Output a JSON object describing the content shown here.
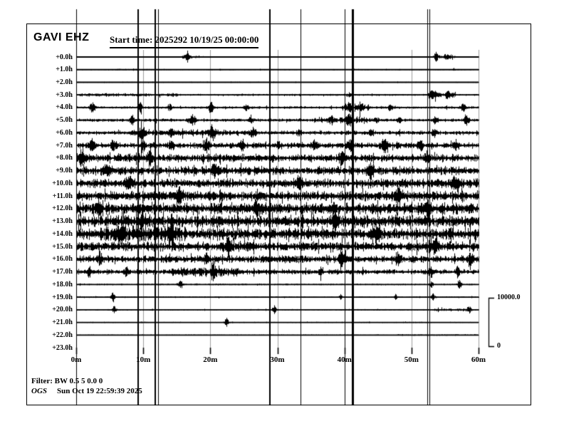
{
  "header": {
    "station": "GAVI EHZ",
    "start_time_label": "Start time: 2025292 10/19/25 00:00:00"
  },
  "footer": {
    "filter": "Filter: BW 0.5 5 0.0 0",
    "agency": "OGS",
    "generated": "Sun Oct 19 22:59:39 2025"
  },
  "scale_bar": {
    "max_label": "10000.0",
    "min_label": "0"
  },
  "colors": {
    "trace": "#000000",
    "grid": "#9e9e9e",
    "event_line": "#000000",
    "background": "#ffffff",
    "border": "#000000"
  },
  "chart_data": {
    "type": "line",
    "subtype": "helicorder-seismogram",
    "title": "GAVI EHZ",
    "x_axis": {
      "unit": "minutes",
      "range_minutes": [
        0,
        60
      ],
      "tick_labels": [
        "0m",
        "10m",
        "20m",
        "30m",
        "40m",
        "50m",
        "60m"
      ],
      "grid": true
    },
    "y_axis": {
      "unit": "hours-offset",
      "row_labels": [
        "+0.0h",
        "+1.0h",
        "+2.0h",
        "+3.0h",
        "+4.0h",
        "+5.0h",
        "+6.0h",
        "+7.0h",
        "+8.0h",
        "+9.0h",
        "+10.0h",
        "+11.0h",
        "+12.0h",
        "+13.0h",
        "+14.0h",
        "+15.0h",
        "+16.0h",
        "+17.0h",
        "+18.0h",
        "+19.0h",
        "+20.0h",
        "+21.0h",
        "+22.0h",
        "+23.0h"
      ]
    },
    "amplitude_scale": {
      "max_counts": 10000,
      "min_counts": 0
    },
    "event_lines_minutes": [
      {
        "min": 0.0,
        "w": 1
      },
      {
        "min": 9.2,
        "w": 2
      },
      {
        "min": 11.8,
        "w": 2
      },
      {
        "min": 12.2,
        "w": 1
      },
      {
        "min": 28.9,
        "w": 2
      },
      {
        "min": 33.4,
        "w": 1
      },
      {
        "min": 40.0,
        "w": 1
      },
      {
        "min": 41.2,
        "w": 3
      },
      {
        "min": 52.4,
        "w": 1
      },
      {
        "min": 52.7,
        "w": 1
      }
    ],
    "rows": [
      {
        "label": "+0.0h",
        "hour": 0,
        "base_amp": 100,
        "bursts": [
          [
            15.4,
            19.4,
            2.2
          ],
          [
            53.6,
            56.6,
            2.8
          ]
        ],
        "spikes": [
          [
            16.5,
            580,
            0.6
          ],
          [
            53.6,
            1000,
            0.3
          ],
          [
            55.3,
            430,
            0.7
          ]
        ]
      },
      {
        "label": "+1.0h",
        "hour": 1,
        "base_amp": 100,
        "bursts": [
          [
            5.6,
            10.9,
            1.5
          ]
        ],
        "spikes": [
          [
            56.3,
            220,
            0.2
          ]
        ]
      },
      {
        "label": "+2.0h",
        "hour": 2,
        "base_amp": 90,
        "bursts": [],
        "spikes": []
      },
      {
        "label": "+3.0h",
        "hour": 3,
        "base_amp": 190,
        "bursts": [
          [
            0.3,
            15.2,
            1.8
          ],
          [
            52.4,
            56.6,
            3.0
          ]
        ],
        "spikes": [
          [
            53.1,
            870,
            0.4
          ],
          [
            55.3,
            720,
            0.3
          ],
          [
            40.7,
            360,
            0.3
          ]
        ]
      },
      {
        "label": "+4.0h",
        "hour": 4,
        "base_amp": 260,
        "bursts": [
          [
            39.6,
            43.9,
            2.5
          ]
        ],
        "spikes": [
          [
            2.4,
            1000,
            0.4
          ],
          [
            9.5,
            870,
            0.3
          ],
          [
            13.9,
            720,
            0.3
          ],
          [
            20.1,
            1000,
            0.4
          ],
          [
            25.3,
            580,
            0.3
          ],
          [
            40.7,
            870,
            0.3
          ],
          [
            42.3,
            720,
            0.3
          ],
          [
            46.8,
            580,
            0.3
          ],
          [
            57.7,
            720,
            0.3
          ]
        ]
      },
      {
        "label": "+5.0h",
        "hour": 5,
        "base_amp": 320,
        "bursts": [
          [
            35.4,
            44.9,
            2.0
          ]
        ],
        "spikes": [
          [
            8.3,
            720,
            0.3
          ],
          [
            17.3,
            1160,
            0.5
          ],
          [
            26.0,
            580,
            0.3
          ],
          [
            38.0,
            580,
            0.3
          ],
          [
            40.7,
            1000,
            0.4
          ],
          [
            48.1,
            580,
            0.3
          ],
          [
            53.4,
            580,
            0.3
          ],
          [
            58.2,
            870,
            0.4
          ]
        ]
      },
      {
        "label": "+6.0h",
        "hour": 6,
        "base_amp": 400,
        "bursts": [
          [
            7.8,
            26.9,
            1.6
          ]
        ],
        "spikes": [
          [
            9.7,
            1160,
            0.5
          ],
          [
            14.1,
            720,
            0.3
          ],
          [
            20.3,
            1160,
            0.5
          ],
          [
            26.3,
            870,
            0.4
          ],
          [
            33.2,
            580,
            0.3
          ],
          [
            43.9,
            720,
            0.3
          ],
          [
            53.4,
            720,
            0.3
          ]
        ]
      },
      {
        "label": "+7.0h",
        "hour": 7,
        "base_amp": 580,
        "bursts": [],
        "spikes": [
          [
            2.4,
            870,
            0.4
          ],
          [
            5.6,
            870,
            0.4
          ],
          [
            9.9,
            1000,
            0.4
          ],
          [
            14.1,
            870,
            0.4
          ],
          [
            19.4,
            1000,
            0.4
          ],
          [
            24.7,
            870,
            0.4
          ],
          [
            30.1,
            720,
            0.3
          ],
          [
            35.4,
            870,
            0.4
          ],
          [
            40.7,
            1000,
            0.4
          ],
          [
            46.0,
            1160,
            0.5
          ],
          [
            51.3,
            1000,
            0.4
          ],
          [
            56.6,
            870,
            0.4
          ]
        ]
      },
      {
        "label": "+8.0h",
        "hour": 8,
        "base_amp": 800,
        "bursts": [],
        "spikes": [
          [
            0.8,
            1160,
            0.5
          ],
          [
            10.9,
            1000,
            0.4
          ],
          [
            39.6,
            1160,
            0.5
          ],
          [
            52.4,
            1000,
            0.4
          ]
        ]
      },
      {
        "label": "+9.0h",
        "hour": 9,
        "base_amp": 870,
        "bursts": [],
        "spikes": [
          [
            4.6,
            1160,
            0.5
          ],
          [
            20.5,
            1160,
            0.4
          ],
          [
            43.9,
            1160,
            0.5
          ]
        ]
      },
      {
        "label": "+10.0h",
        "hour": 10,
        "base_amp": 940,
        "bursts": [],
        "spikes": [
          [
            7.8,
            1300,
            0.5
          ],
          [
            33.2,
            1160,
            0.4
          ],
          [
            56.6,
            1160,
            0.5
          ]
        ]
      },
      {
        "label": "+11.0h",
        "hour": 11,
        "base_amp": 1000,
        "bursts": [],
        "spikes": [
          [
            15.2,
            1300,
            0.5
          ],
          [
            48.1,
            1300,
            0.5
          ]
        ]
      },
      {
        "label": "+12.0h",
        "hour": 12,
        "base_amp": 1200,
        "bursts": [],
        "spikes": [
          [
            3.5,
            1300,
            0.4
          ],
          [
            26.9,
            1300,
            0.5
          ],
          [
            52.4,
            1300,
            0.4
          ]
        ]
      },
      {
        "label": "+13.0h",
        "hour": 13,
        "base_amp": 1200,
        "bursts": [],
        "spikes": [
          [
            9.9,
            1300,
            0.5
          ],
          [
            38.5,
            1300,
            0.4
          ]
        ]
      },
      {
        "label": "+14.0h",
        "hour": 14,
        "base_amp": 1200,
        "bursts": [
          [
            3.5,
            16.2,
            1.3
          ]
        ],
        "spikes": [
          [
            6.7,
            1450,
            0.6
          ],
          [
            14.1,
            1450,
            0.5
          ],
          [
            44.9,
            1300,
            0.5
          ]
        ]
      },
      {
        "label": "+15.0h",
        "hour": 15,
        "base_amp": 940,
        "bursts": [],
        "spikes": [
          [
            22.6,
            1300,
            0.5
          ],
          [
            53.4,
            1160,
            0.4
          ]
        ]
      },
      {
        "label": "+16.0h",
        "hour": 16,
        "base_amp": 720,
        "bursts": [],
        "spikes": [
          [
            3.5,
            1000,
            0.4
          ],
          [
            19.4,
            1000,
            0.4
          ],
          [
            39.6,
            1300,
            0.5
          ],
          [
            48.1,
            1000,
            0.4
          ],
          [
            58.7,
            1000,
            0.4
          ]
        ]
      },
      {
        "label": "+17.0h",
        "hour": 17,
        "base_amp": 510,
        "bursts": [
          [
            14.1,
            24.7,
            1.8
          ]
        ],
        "spikes": [
          [
            1.9,
            870,
            0.3
          ],
          [
            7.4,
            870,
            0.3
          ],
          [
            20.5,
            1000,
            0.4
          ],
          [
            36.4,
            720,
            0.3
          ],
          [
            52.9,
            870,
            0.3
          ],
          [
            56.9,
            870,
            0.3
          ]
        ]
      },
      {
        "label": "+18.0h",
        "hour": 18,
        "base_amp": 150,
        "bursts": [],
        "spikes": [
          [
            15.5,
            720,
            0.3
          ],
          [
            52.9,
            580,
            0.3
          ],
          [
            57.1,
            870,
            0.3
          ]
        ]
      },
      {
        "label": "+19.0h",
        "hour": 19,
        "base_amp": 130,
        "bursts": [],
        "spikes": [
          [
            5.4,
            870,
            0.3
          ],
          [
            39.4,
            580,
            0.2
          ],
          [
            47.6,
            580,
            0.2
          ],
          [
            53.2,
            720,
            0.3
          ]
        ]
      },
      {
        "label": "+20.0h",
        "hour": 20,
        "base_amp": 120,
        "bursts": [
          [
            53.4,
            58.7,
            2.5
          ]
        ],
        "spikes": [
          [
            5.6,
            720,
            0.3
          ],
          [
            29.5,
            870,
            0.3
          ],
          [
            58.7,
            580,
            0.3
          ]
        ]
      },
      {
        "label": "+21.0h",
        "hour": 21,
        "base_amp": 100,
        "bursts": [],
        "spikes": [
          [
            22.4,
            870,
            0.3
          ]
        ]
      },
      {
        "label": "+22.0h",
        "hour": 22,
        "base_amp": 100,
        "bursts": [
          [
            48.1,
            60,
            1.5
          ]
        ],
        "spikes": []
      },
      {
        "label": "+23.0h",
        "hour": 23,
        "base_amp": 0,
        "bursts": [],
        "spikes": []
      }
    ]
  }
}
